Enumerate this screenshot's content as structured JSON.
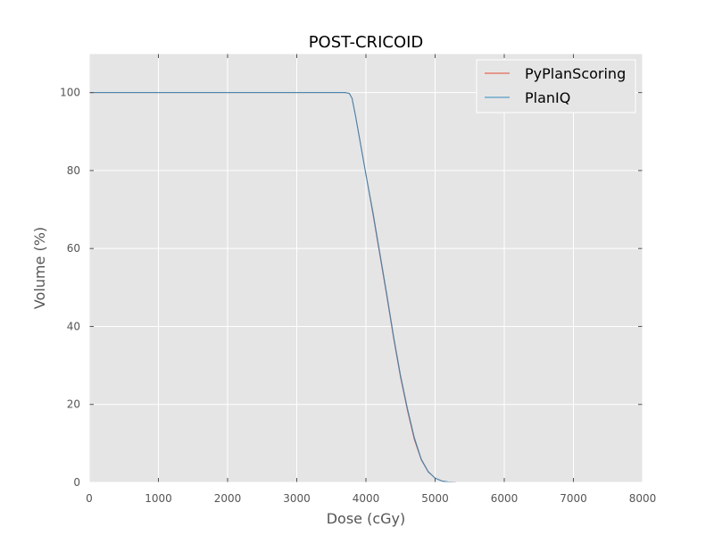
{
  "chart_data": {
    "type": "line",
    "title": "POST-CRICOID",
    "xlabel": "Dose (cGy)",
    "ylabel": "Volume (%)",
    "xlim": [
      0,
      8000
    ],
    "ylim": [
      0,
      110
    ],
    "xticks": [
      0,
      1000,
      2000,
      3000,
      4000,
      5000,
      6000,
      7000,
      8000
    ],
    "yticks": [
      0,
      20,
      40,
      60,
      80,
      100
    ],
    "grid": true,
    "legend_position": "top-right",
    "series": [
      {
        "name": "PyPlanScoring",
        "color": "#e24a33",
        "x": [
          0,
          3700,
          3760,
          3800,
          3850,
          3900,
          4000,
          4100,
          4200,
          4300,
          4400,
          4500,
          4600,
          4700,
          4800,
          4900,
          5000,
          5100,
          5200,
          5300,
          5400,
          6000,
          7000,
          7500
        ],
        "y": [
          100,
          100,
          99.8,
          98.5,
          94,
          89,
          79,
          69,
          58.5,
          48,
          37,
          27,
          18.5,
          11,
          5.8,
          2.7,
          1.1,
          0.35,
          0.1,
          0.02,
          0,
          0,
          0,
          0
        ]
      },
      {
        "name": "PlanIQ",
        "color": "#348abd",
        "x": [
          0,
          3700,
          3760,
          3800,
          3850,
          3900,
          4000,
          4100,
          4200,
          4300,
          4400,
          4500,
          4600,
          4700,
          4800,
          4900,
          5000,
          5100,
          5200,
          5300,
          5400,
          6000,
          7000,
          7500
        ],
        "y": [
          100,
          100,
          99.8,
          98.5,
          94,
          89,
          79,
          69.5,
          59,
          48.5,
          37.5,
          27.5,
          19,
          11.5,
          6,
          2.8,
          1.1,
          0.35,
          0.1,
          0.02,
          0,
          0,
          0,
          0
        ]
      }
    ]
  }
}
